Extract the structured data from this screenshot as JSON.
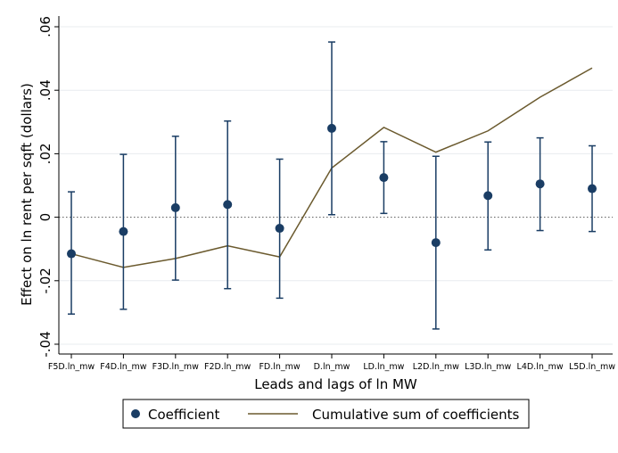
{
  "chart_data": {
    "type": "scatter",
    "categories": [
      "F5D.ln_mw",
      "F4D.ln_mw",
      "F3D.ln_mw",
      "F2D.ln_mw",
      "FD.ln_mw",
      "D.ln_mw",
      "LD.ln_mw",
      "L2D.ln_mw",
      "L3D.ln_mw",
      "L4D.ln_mw",
      "L5D.ln_mw"
    ],
    "series": [
      {
        "name": "Coefficient",
        "kind": "point_with_ci",
        "color": "#1a3d64",
        "values": [
          -0.0115,
          -0.0045,
          0.003,
          0.004,
          -0.0035,
          0.028,
          0.0125,
          -0.008,
          0.0068,
          0.0105,
          0.009
        ],
        "ci_low": [
          -0.0305,
          -0.029,
          -0.0198,
          -0.0225,
          -0.0255,
          0.0008,
          0.0012,
          -0.0352,
          -0.0103,
          -0.0042,
          -0.0045
        ],
        "ci_high": [
          0.008,
          0.0198,
          0.0255,
          0.0303,
          0.0183,
          0.0552,
          0.0238,
          0.0192,
          0.0237,
          0.025,
          0.0225
        ]
      },
      {
        "name": "Cumulative sum of coefficients",
        "kind": "line",
        "color": "#6b5a2e",
        "values": [
          -0.0115,
          -0.0158,
          -0.013,
          -0.009,
          -0.0125,
          0.0155,
          0.0283,
          0.0205,
          0.0272,
          0.0378,
          0.047
        ]
      }
    ],
    "xlabel": "Leads and lags of ln MW",
    "ylabel": "Effect on ln rent per sqft (dollars)",
    "ylim": [
      -0.04,
      0.06
    ],
    "yticks": [
      -0.04,
      -0.02,
      0,
      0.02,
      0.04,
      0.06
    ],
    "ytick_labels": [
      "-.04",
      "-.02",
      "0",
      ".02",
      ".04",
      ".06"
    ],
    "grid": true,
    "zero_line": "dotted",
    "legend_position": "bottom"
  }
}
